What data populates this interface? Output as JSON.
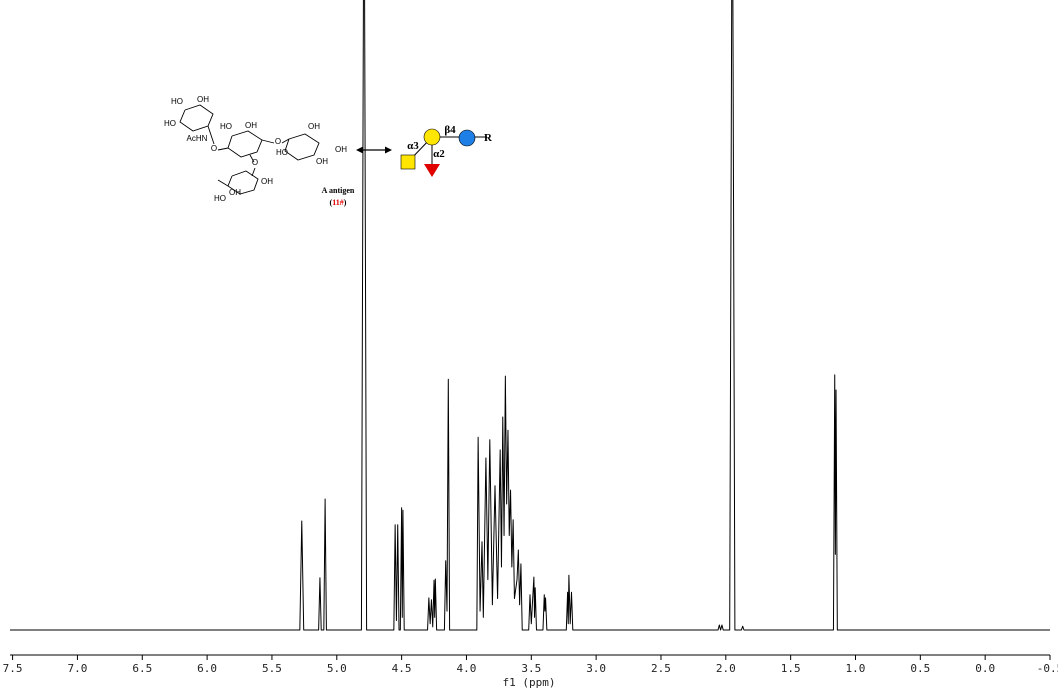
{
  "chart_data": {
    "type": "line",
    "x_label": "f1 (ppm)",
    "color": "#000000",
    "xlim": [
      7.52,
      -0.5
    ],
    "ylim": [
      0,
      100
    ],
    "xticks": [
      7.5,
      {
        "value": 7,
        "label": "7.0"
      },
      6.5,
      {
        "value": 6,
        "label": "6.0"
      },
      5.5,
      {
        "value": 5,
        "label": "5.0"
      },
      4.5,
      {
        "value": 4,
        "label": "4.0"
      },
      3.5,
      {
        "value": 3,
        "label": "3.0"
      },
      2.5,
      {
        "value": 2,
        "label": "2.0"
      },
      1.5,
      {
        "value": 1,
        "label": "1.0"
      },
      0.5,
      {
        "value": 0,
        "label": "0.0"
      },
      -0.5
    ],
    "x": [
      7.52,
      5.285,
      5.27,
      5.255,
      5.14,
      5.13,
      5.12,
      5.1,
      5.09,
      5.08,
      4.81,
      4.79,
      4.77,
      4.56,
      4.55,
      4.54,
      4.53,
      4.52,
      4.51,
      4.5,
      4.495,
      4.49,
      4.48,
      4.3,
      4.29,
      4.28,
      4.27,
      4.26,
      4.25,
      4.245,
      4.24,
      4.23,
      4.17,
      4.16,
      4.15,
      4.14,
      4.13,
      3.92,
      3.91,
      3.895,
      3.88,
      3.87,
      3.85,
      3.835,
      3.82,
      3.8,
      3.78,
      3.76,
      3.74,
      3.73,
      3.72,
      3.71,
      3.7,
      3.69,
      3.68,
      3.67,
      3.66,
      3.65,
      3.64,
      3.63,
      3.61,
      3.6,
      3.59,
      3.58,
      3.57,
      3.52,
      3.51,
      3.5,
      3.48,
      3.475,
      3.47,
      3.46,
      3.41,
      3.4,
      3.395,
      3.39,
      3.38,
      3.23,
      3.22,
      3.215,
      3.21,
      3.2,
      3.19,
      3.18,
      2.06,
      2.05,
      2.04,
      2.03,
      2.02,
      1.97,
      1.95,
      1.93,
      1.88,
      1.87,
      1.86,
      1.17,
      1.16,
      1.155,
      1.15,
      1.14,
      -0.5
    ],
    "values": [
      0,
      0,
      17.3,
      0,
      0,
      8.3,
      0,
      0,
      20.8,
      0,
      0,
      130,
      0,
      0,
      16.7,
      1.5,
      16.7,
      0,
      0,
      19.4,
      2,
      19.0,
      0,
      0,
      5.1,
      1,
      4.8,
      0.5,
      7.9,
      2,
      8.1,
      0,
      0,
      11,
      3,
      39.8,
      0,
      0,
      30.6,
      3,
      14,
      2,
      27.3,
      8,
      30.2,
      4,
      22.9,
      5,
      28.6,
      10,
      33.8,
      15,
      40.3,
      20,
      31.7,
      15,
      22.2,
      10,
      17.5,
      5,
      8,
      12.7,
      4,
      10.5,
      0,
      0,
      5.6,
      1,
      8.4,
      2,
      6.7,
      0,
      0,
      5.6,
      3,
      5.1,
      0,
      0,
      6.0,
      1,
      8.7,
      1,
      6.0,
      0,
      0,
      0.8,
      0,
      0.8,
      0,
      0,
      130,
      0,
      0,
      0.6,
      0,
      0,
      40.5,
      12,
      38.1,
      0,
      0
    ],
    "annotations": {
      "structure_labels": [
        "HO",
        "OH",
        "HO",
        "AcHN",
        "O",
        "HO",
        "OH",
        "O",
        "O",
        "OH",
        "HO",
        "OH",
        "OH",
        "HO",
        "OH",
        "OH"
      ],
      "compound_name": "A antigen",
      "compound_id": [
        "(",
        "11#",
        ")"
      ],
      "glycan_labels": [
        "α3",
        "β4",
        "α2",
        "R"
      ]
    }
  }
}
